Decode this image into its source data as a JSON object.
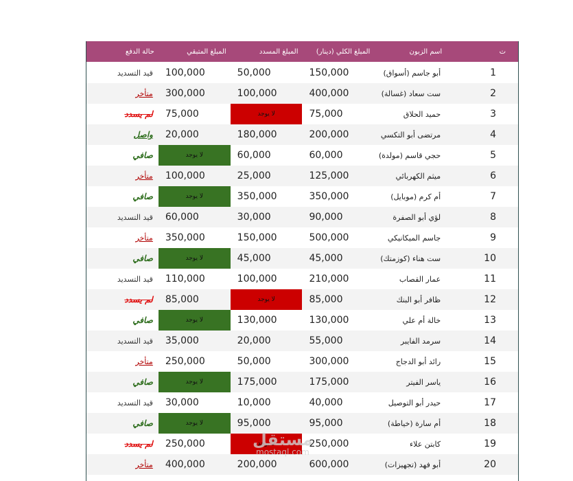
{
  "headers": {
    "status": "حالة الدفع",
    "remaining": "المبلغ المتبقي",
    "paid": "المبلغ المسدد",
    "total": "المبلغ الكلي (دينار)",
    "name": "اسم الزبون",
    "index": "ت"
  },
  "rows": [
    {
      "idx": "1",
      "name": "أبو جاسم (أسواق)",
      "total": "150,000",
      "paid": "50,000",
      "remaining": "100,000",
      "status": "قيد التسديد",
      "status_type": "pending"
    },
    {
      "idx": "2",
      "name": "ست سعاد (غسالة)",
      "total": "400,000",
      "paid": "100,000",
      "remaining": "300,000",
      "status": "متأخر",
      "status_type": "late"
    },
    {
      "idx": "3",
      "name": "حميد الحلاق",
      "total": "75,000",
      "paid": "لا يوجد",
      "paid_type": "none-red",
      "remaining": "75,000",
      "status": "لم يسدد",
      "status_type": "unpaid"
    },
    {
      "idx": "4",
      "name": "مرتضى أبو التكسي",
      "total": "200,000",
      "paid": "180,000",
      "remaining": "20,000",
      "status": "واصل",
      "status_type": "arrived"
    },
    {
      "idx": "5",
      "name": "حجي قاسم (مولدة)",
      "total": "60,000",
      "paid": "60,000",
      "remaining": "لا يوجد",
      "remaining_type": "none-green",
      "status": "صافي",
      "status_type": "clear"
    },
    {
      "idx": "6",
      "name": "ميثم الكهربائي",
      "total": "125,000",
      "paid": "25,000",
      "remaining": "100,000",
      "status": "متأخر",
      "status_type": "late"
    },
    {
      "idx": "7",
      "name": "أم كرم (موبايل)",
      "total": "350,000",
      "paid": "350,000",
      "remaining": "لا يوجد",
      "remaining_type": "none-green",
      "status": "صافي",
      "status_type": "clear"
    },
    {
      "idx": "8",
      "name": "لؤي أبو الصفرة",
      "total": "90,000",
      "paid": "30,000",
      "remaining": "60,000",
      "status": "قيد التسديد",
      "status_type": "pending"
    },
    {
      "idx": "9",
      "name": "جاسم الميكانيكي",
      "total": "500,000",
      "paid": "150,000",
      "remaining": "350,000",
      "status": "متأخر",
      "status_type": "late"
    },
    {
      "idx": "10",
      "name": "ست هناء (كوزمتك)",
      "total": "45,000",
      "paid": "45,000",
      "remaining": "لا يوجد",
      "remaining_type": "none-green",
      "status": "صافي",
      "status_type": "clear"
    },
    {
      "idx": "11",
      "name": "عمار القصاب",
      "total": "210,000",
      "paid": "100,000",
      "remaining": "110,000",
      "status": "قيد التسديد",
      "status_type": "pending"
    },
    {
      "idx": "12",
      "name": "ظافر أبو البنك",
      "total": "85,000",
      "paid": "لا يوجد",
      "paid_type": "none-red",
      "remaining": "85,000",
      "status": "لم يسدد",
      "status_type": "unpaid"
    },
    {
      "idx": "13",
      "name": "خالة أم علي",
      "total": "130,000",
      "paid": "130,000",
      "remaining": "لا يوجد",
      "remaining_type": "none-green",
      "status": "صافي",
      "status_type": "clear"
    },
    {
      "idx": "14",
      "name": "سرمد الفايبر",
      "total": "55,000",
      "paid": "20,000",
      "remaining": "35,000",
      "status": "قيد التسديد",
      "status_type": "pending"
    },
    {
      "idx": "15",
      "name": "رائد أبو الدجاج",
      "total": "300,000",
      "paid": "50,000",
      "remaining": "250,000",
      "status": "متأخر",
      "status_type": "late"
    },
    {
      "idx": "16",
      "name": "ياسر الفيتر",
      "total": "175,000",
      "paid": "175,000",
      "remaining": "لا يوجد",
      "remaining_type": "none-green",
      "status": "صافي",
      "status_type": "clear"
    },
    {
      "idx": "17",
      "name": "حيدر أبو التوصيل",
      "total": "40,000",
      "paid": "10,000",
      "remaining": "30,000",
      "status": "قيد التسديد",
      "status_type": "pending"
    },
    {
      "idx": "18",
      "name": "أم سارة (خياطة)",
      "total": "95,000",
      "paid": "95,000",
      "remaining": "لا يوجد",
      "remaining_type": "none-green",
      "status": "صافي",
      "status_type": "clear"
    },
    {
      "idx": "19",
      "name": "كابتن علاء",
      "total": "250,000",
      "paid": "لا يوجد",
      "paid_type": "none-red",
      "remaining": "250,000",
      "status": "لم يسدد",
      "status_type": "unpaid"
    },
    {
      "idx": "20",
      "name": "أبو فهد (تجهيزات)",
      "total": "600,000",
      "paid": "200,000",
      "remaining": "400,000",
      "status": "متأخر",
      "status_type": "late"
    }
  ],
  "watermark": {
    "arabic": "مستقل",
    "latin": "mostaql.com"
  },
  "colors": {
    "header_bg": "#a7497a",
    "none_green": "#387323",
    "none_red": "#cc0000"
  }
}
